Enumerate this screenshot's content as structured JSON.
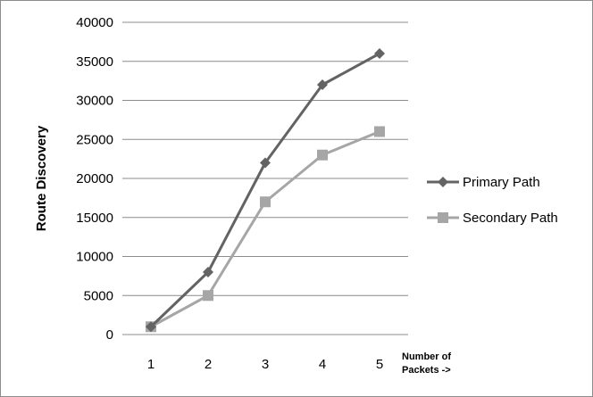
{
  "chart_data": {
    "type": "line",
    "x": [
      1,
      2,
      3,
      4,
      5
    ],
    "xticks": [
      "1",
      "2",
      "3",
      "4",
      "5"
    ],
    "ylabel": "Route Discovery",
    "xlabel_line1": "Number of",
    "xlabel_line2": "Packets  ->",
    "ylim": [
      0,
      40000
    ],
    "yticks": [
      "0",
      "5000",
      "10000",
      "15000",
      "20000",
      "25000",
      "30000",
      "35000",
      "40000"
    ],
    "grid": "horizontal",
    "legend_position": "right",
    "series": [
      {
        "name": "Primary Path",
        "values": [
          1000,
          8000,
          22000,
          32000,
          36000
        ],
        "color": "#636363",
        "marker": "diamond"
      },
      {
        "name": "Secondary Path",
        "values": [
          1000,
          5000,
          17000,
          23000,
          26000
        ],
        "color": "#a6a6a6",
        "marker": "square"
      }
    ]
  }
}
